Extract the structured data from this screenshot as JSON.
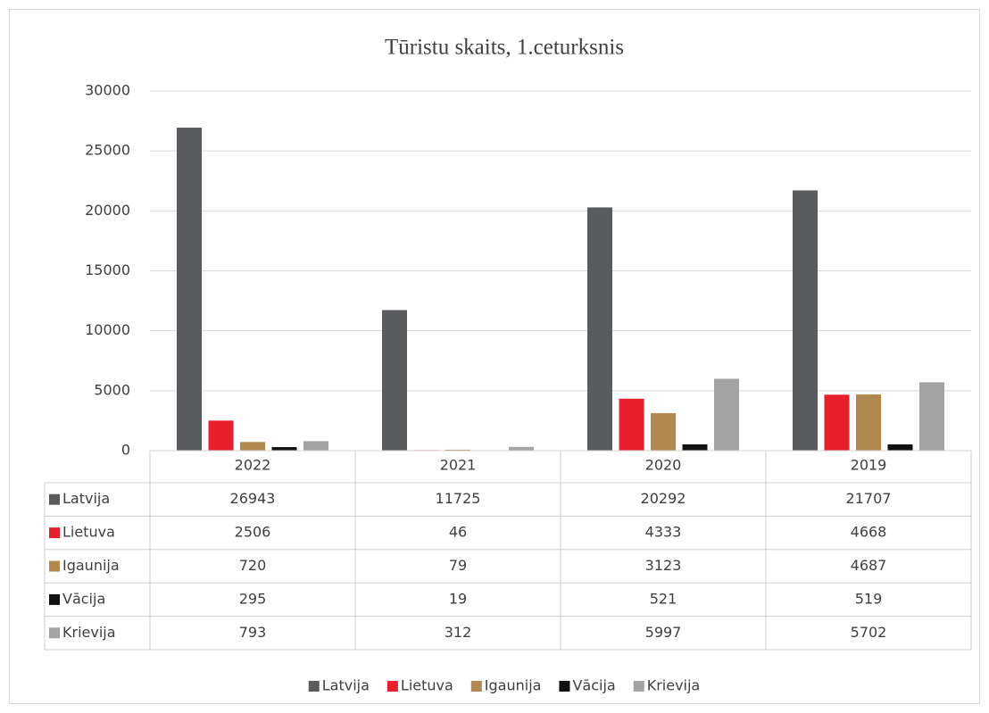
{
  "chart_data": {
    "type": "bar",
    "title": "Tūristu skaits, 1.ceturksnis",
    "categories": [
      "2022",
      "2021",
      "2020",
      "2019"
    ],
    "series": [
      {
        "name": "Latvija",
        "color": "#595b5e",
        "values": [
          26943,
          11725,
          20292,
          21707
        ]
      },
      {
        "name": "Lietuva",
        "color": "#e8202e",
        "values": [
          2506,
          46,
          4333,
          4668
        ]
      },
      {
        "name": "Igaunija",
        "color": "#b08850",
        "values": [
          720,
          79,
          3123,
          4687
        ]
      },
      {
        "name": "Vācija",
        "color": "#111111",
        "values": [
          295,
          19,
          521,
          519
        ]
      },
      {
        "name": "Krievija",
        "color": "#a3a3a3",
        "values": [
          793,
          312,
          5997,
          5702
        ]
      }
    ],
    "ylim": [
      0,
      30000
    ],
    "yticks": [
      0,
      5000,
      10000,
      15000,
      20000,
      25000,
      30000
    ],
    "grid": true,
    "data_table": true,
    "legend": "bottom"
  }
}
